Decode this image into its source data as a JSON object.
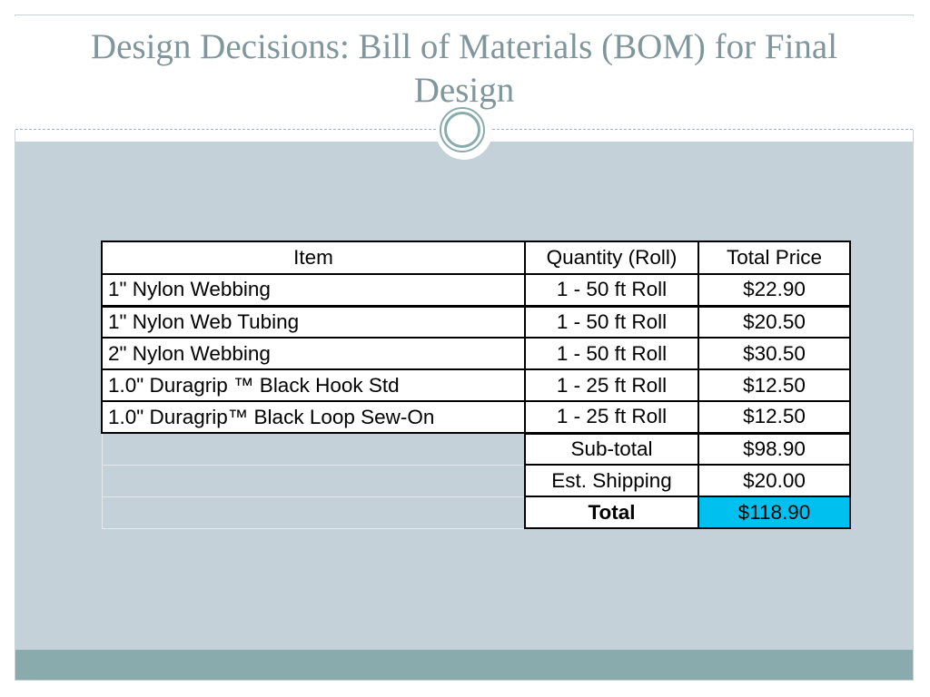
{
  "slide": {
    "title": "Design Decisions: Bill of Materials (BOM) for Final Design"
  },
  "table": {
    "headers": {
      "item": "Item",
      "quantity": "Quantity (Roll)",
      "total_price": "Total Price"
    },
    "rows": [
      {
        "item": "1\" Nylon Webbing",
        "quantity": "1 - 50 ft Roll",
        "price": "$22.90"
      },
      {
        "item": "1\" Nylon Web Tubing",
        "quantity": "1 - 50 ft Roll",
        "price": "$20.50"
      },
      {
        "item": "2\" Nylon Webbing",
        "quantity": "1 - 50 ft Roll",
        "price": "$30.50"
      },
      {
        "item": "1.0\" Duragrip ™ Black Hook Std",
        "quantity": "1 - 25 ft Roll",
        "price": "$12.50"
      },
      {
        "item": "1.0\" Duragrip™ Black Loop Sew-On",
        "quantity": "1 - 25 ft Roll",
        "price": "$12.50"
      }
    ],
    "summary": [
      {
        "label": "Sub-total",
        "value": "$98.90"
      },
      {
        "label": "Est. Shipping",
        "value": "$20.00"
      },
      {
        "label": "Total",
        "value": "$118.90"
      }
    ]
  },
  "colors": {
    "title_text": "#7f979c",
    "content_background": "#c5d1d8",
    "footer_band": "#8aabae",
    "total_highlight": "#00c0f0"
  }
}
